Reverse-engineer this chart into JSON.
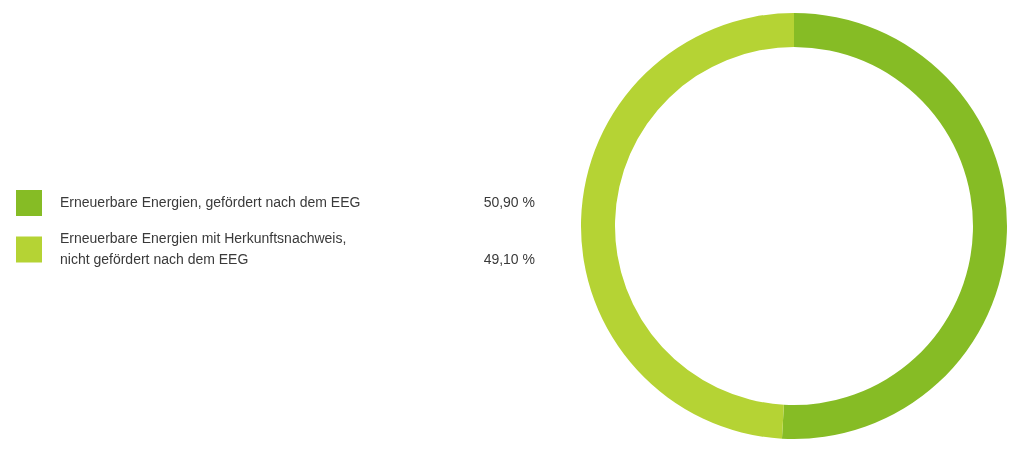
{
  "chart_data": {
    "type": "donut",
    "categories": [
      "Erneuerbare Energien, gefördert nach dem EEG",
      "Erneuerbare Energien mit Herkunftsnachweis,\nnicht gefördert nach dem EEG"
    ],
    "values": [
      50.9,
      49.1
    ],
    "colors": [
      "#86bc25",
      "#b5d334"
    ],
    "value_labels": [
      "50,90 %",
      "49,10 %"
    ],
    "legend": "left"
  }
}
